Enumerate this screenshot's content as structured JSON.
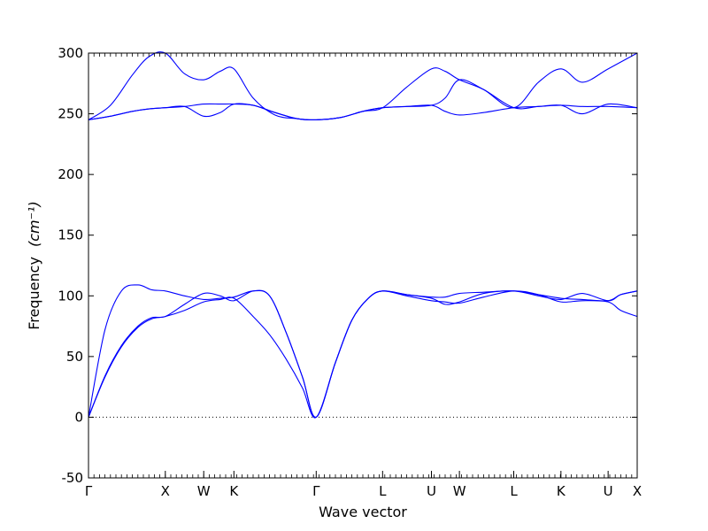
{
  "chart_data": {
    "type": "line",
    "xlabel": "Wave vector",
    "ylabel": "Frequency",
    "ylabel_unit": "(cm⁻¹)",
    "ylim": [
      -50,
      300
    ],
    "yticks": [
      -50,
      0,
      50,
      100,
      150,
      200,
      250,
      300
    ],
    "xlim": [
      0,
      1
    ],
    "grid": false,
    "reference_line": {
      "y": 0,
      "style": "dotted"
    },
    "line_color": "#0000ff",
    "x_ticks": [
      {
        "label": "Γ",
        "x": 0.0
      },
      {
        "label": "X",
        "x": 0.14
      },
      {
        "label": "W",
        "x": 0.21
      },
      {
        "label": "K",
        "x": 0.265
      },
      {
        "label": "Γ",
        "x": 0.415
      },
      {
        "label": "L",
        "x": 0.536
      },
      {
        "label": "U",
        "x": 0.625
      },
      {
        "label": "W",
        "x": 0.676
      },
      {
        "label": "L",
        "x": 0.775
      },
      {
        "label": "K",
        "x": 0.861
      },
      {
        "label": "U",
        "x": 0.947
      },
      {
        "label": "X",
        "x": 1.0
      }
    ],
    "series": [
      {
        "x": [
          0,
          0.03,
          0.06,
          0.09,
          0.115,
          0.14,
          0.175,
          0.21,
          0.24,
          0.265,
          0.3,
          0.33,
          0.36,
          0.39,
          0.415,
          0.45,
          0.48,
          0.51,
          0.536,
          0.58,
          0.625,
          0.65,
          0.676,
          0.72,
          0.775,
          0.82,
          0.861,
          0.9,
          0.947,
          0.97,
          1.0
        ],
        "y": [
          0,
          33,
          58,
          74,
          81,
          83,
          88,
          95,
          97,
          98,
          83,
          68,
          48,
          24,
          0,
          45,
          80,
          98,
          104,
          100,
          96,
          95,
          94,
          99,
          104,
          101,
          95,
          96,
          95,
          88,
          83
        ]
      },
      {
        "x": [
          0,
          0.03,
          0.06,
          0.09,
          0.115,
          0.14,
          0.175,
          0.21,
          0.24,
          0.265,
          0.3,
          0.33,
          0.36,
          0.39,
          0.415,
          0.45,
          0.48,
          0.51,
          0.536,
          0.58,
          0.625,
          0.65,
          0.676,
          0.72,
          0.775,
          0.82,
          0.861,
          0.9,
          0.947,
          0.97,
          1.0
        ],
        "y": [
          0,
          34,
          59,
          75,
          82,
          83,
          93,
          102,
          100,
          96,
          104,
          100,
          70,
          33,
          0,
          45,
          80,
          98,
          104,
          101,
          98,
          93,
          95,
          102,
          104,
          100,
          97,
          102,
          96,
          101,
          104
        ]
      },
      {
        "x": [
          0,
          0.03,
          0.06,
          0.09,
          0.115,
          0.14,
          0.175,
          0.21,
          0.24,
          0.265,
          0.3,
          0.33,
          0.36,
          0.39,
          0.415,
          0.45,
          0.48,
          0.51,
          0.536,
          0.58,
          0.625,
          0.65,
          0.676,
          0.72,
          0.775,
          0.82,
          0.861,
          0.9,
          0.947,
          0.97,
          1.0
        ],
        "y": [
          0,
          72,
          104,
          109,
          105,
          104,
          100,
          97,
          98,
          99,
          104,
          100,
          70,
          33,
          0,
          45,
          80,
          98,
          104,
          101,
          99,
          99,
          102,
          103,
          104,
          101,
          98,
          97,
          96,
          101,
          104
        ]
      },
      {
        "x": [
          0,
          0.04,
          0.08,
          0.11,
          0.14,
          0.175,
          0.21,
          0.24,
          0.265,
          0.3,
          0.34,
          0.38,
          0.415,
          0.46,
          0.5,
          0.536,
          0.58,
          0.625,
          0.65,
          0.676,
          0.72,
          0.775,
          0.82,
          0.861,
          0.9,
          0.947,
          1.0
        ],
        "y": [
          245,
          248,
          252,
          254,
          255,
          256,
          258,
          258,
          258,
          257,
          251,
          246,
          245,
          247,
          252,
          255,
          256,
          257,
          252,
          249,
          251,
          255,
          256,
          257,
          256,
          256,
          255
        ]
      },
      {
        "x": [
          0,
          0.04,
          0.08,
          0.11,
          0.14,
          0.175,
          0.21,
          0.24,
          0.265,
          0.3,
          0.34,
          0.38,
          0.415,
          0.46,
          0.5,
          0.536,
          0.58,
          0.625,
          0.65,
          0.676,
          0.72,
          0.775,
          0.82,
          0.861,
          0.9,
          0.947,
          1.0
        ],
        "y": [
          245,
          248,
          252,
          254,
          255,
          256,
          248,
          251,
          258,
          257,
          251,
          246,
          245,
          247,
          252,
          255,
          256,
          257,
          263,
          278,
          270,
          255,
          256,
          257,
          250,
          258,
          255
        ]
      },
      {
        "x": [
          0,
          0.04,
          0.08,
          0.11,
          0.14,
          0.175,
          0.21,
          0.24,
          0.265,
          0.3,
          0.34,
          0.38,
          0.415,
          0.46,
          0.5,
          0.536,
          0.58,
          0.625,
          0.65,
          0.676,
          0.72,
          0.775,
          0.82,
          0.861,
          0.9,
          0.947,
          1.0
        ],
        "y": [
          245,
          257,
          282,
          297,
          300,
          283,
          278,
          285,
          287,
          263,
          249,
          246,
          245,
          247,
          252,
          255,
          272,
          287,
          285,
          278,
          270,
          255,
          276,
          287,
          276,
          287,
          300
        ]
      }
    ]
  }
}
